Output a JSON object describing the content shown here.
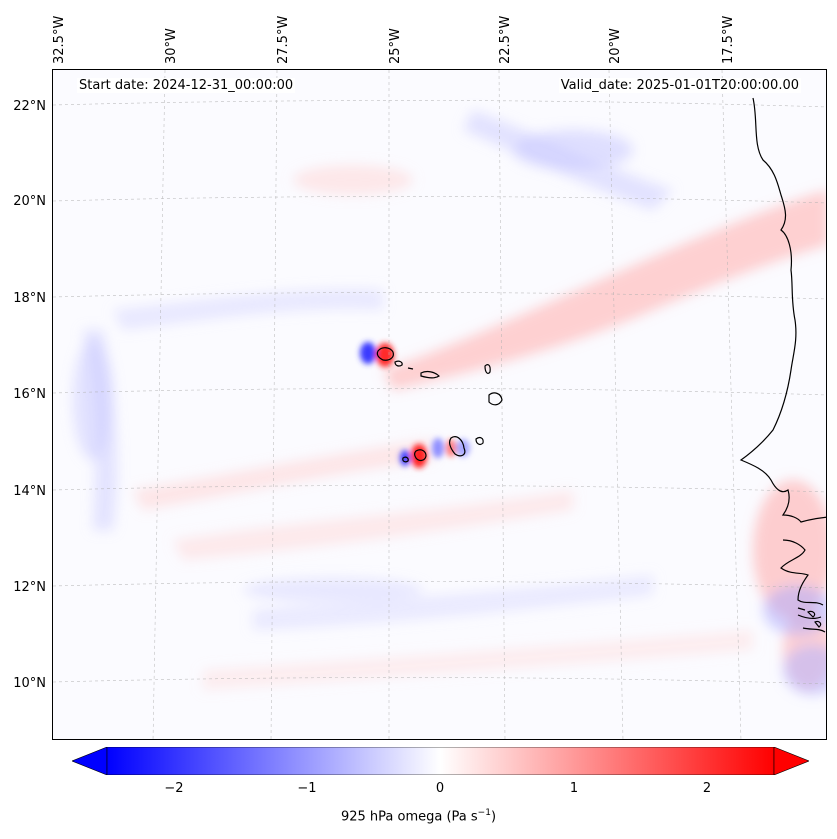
{
  "header": {
    "start_date": "Start date: 2024-12-31_00:00:00",
    "valid_date": "Valid_date: 2025-01-01T20:00:00.00"
  },
  "longitude_labels": [
    "32.5°W",
    "30°W",
    "27.5°W",
    "25°W",
    "22.5°W",
    "20°W",
    "17.5°W"
  ],
  "latitude_labels": [
    "22°N",
    "20°N",
    "18°N",
    "16°N",
    "14°N",
    "12°N",
    "10°N"
  ],
  "colorbar": {
    "ticks": [
      "−2",
      "−1",
      "0",
      "1",
      "2"
    ],
    "label_text": "925 hPa omega (Pa s",
    "label_exp": "−1",
    "label_close": ")",
    "range": [
      -2.5,
      2.5
    ],
    "colormap": "bwr",
    "low_color": "#0000ff",
    "mid_color": "#ffffff",
    "high_color": "#ff0000"
  },
  "map": {
    "variable": "925 hPa omega",
    "projection": "Lambert conformal",
    "lon_range_deg": [
      -33.0,
      -16.0
    ],
    "lat_range_deg": [
      9.0,
      22.8
    ],
    "features": [
      "Cape Verde islands",
      "West African coastline"
    ],
    "colors": {
      "coastline": "#000000",
      "gridline": "#b0b0b0"
    }
  }
}
